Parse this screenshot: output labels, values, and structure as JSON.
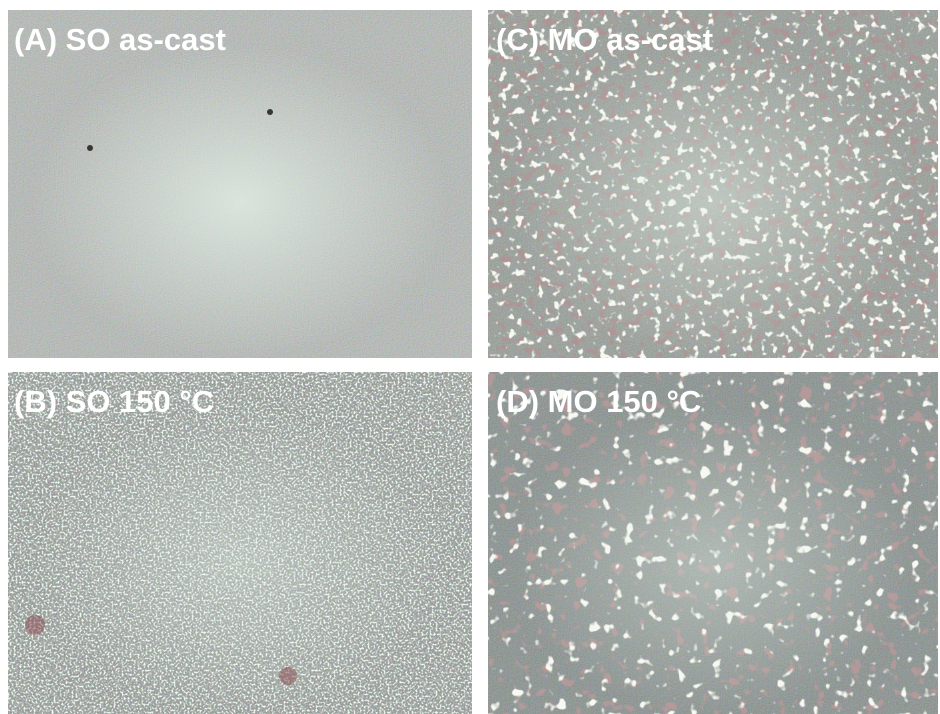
{
  "panels": [
    {
      "label": "(A) SO as-cast"
    },
    {
      "label": "(C) MO as-cast"
    },
    {
      "label": "(B) SO 150 °C"
    },
    {
      "label": "(D) MO 150 °C"
    }
  ]
}
